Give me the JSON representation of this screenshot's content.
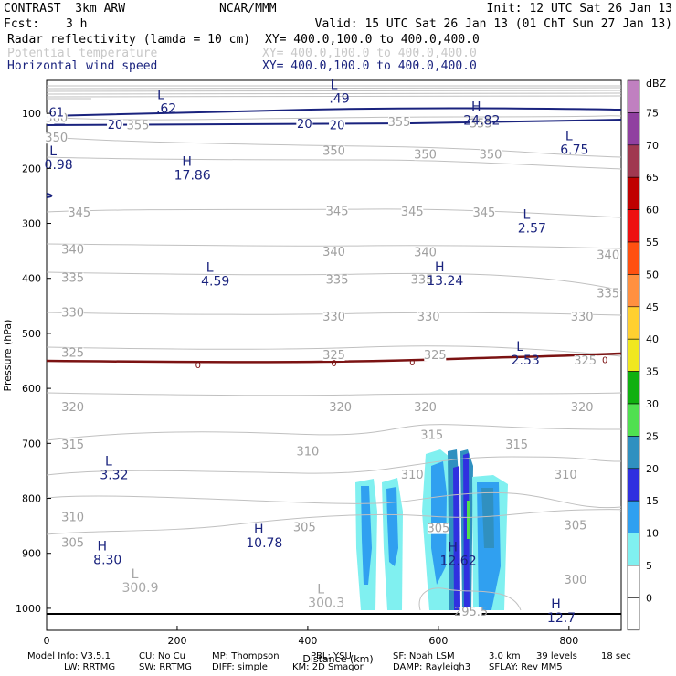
{
  "header": {
    "model": "CONTRAST  3km ARW",
    "center": "NCAR/MMM",
    "init": "Init: 12 UTC Sat 26 Jan 13",
    "fcst_label": "Fcst:",
    "fcst_value": "3 h",
    "valid": "Valid: 15 UTC Sat 26 Jan 13 (01 ChT Sun 27 Jan 13)",
    "fields": [
      {
        "name": "Radar reflectivity (lamda = 10 cm)",
        "xy": "XY= 400.0,100.0 to 400.0,400.0",
        "color": "#000000"
      },
      {
        "name": "Potential temperature",
        "xy": "XY= 400.0,100.0 to 400.0,400.0",
        "color": "#c8c8c8"
      },
      {
        "name": "Horizontal wind speed",
        "xy": "XY= 400.0,100.0 to 400.0,400.0",
        "color": "#1a237e"
      }
    ]
  },
  "footer": {
    "line1": [
      "Model Info: V3.5.1",
      "CU: No Cu",
      "MP: Thompson",
      "PBL: YSU",
      "SF: Noah LSM",
      "3.0 km",
      "39 levels",
      "18 sec"
    ],
    "line2": [
      "LW: RRTMG",
      "SW: RRTMG",
      "DIFF: simple",
      "KM: 2D Smagor",
      "DAMP: Rayleigh3",
      "SFLAY: Rev MM5"
    ]
  },
  "colors": {
    "theta": "#c0c0c0",
    "wind": "#1a237e",
    "freezing": "#7b1212",
    "ground": "#000000"
  },
  "chart_data": {
    "type": "cross-section",
    "xlabel": "Distance (km)",
    "ylabel": "Pressure (hPa)",
    "xlim": [
      0,
      880
    ],
    "ylim": [
      1040,
      40
    ],
    "xticks": [
      0,
      200,
      400,
      600,
      800
    ],
    "yticks": [
      100,
      200,
      300,
      400,
      500,
      600,
      700,
      800,
      900,
      1000
    ],
    "colorbar": {
      "unit": "dBZ",
      "levels": [
        75,
        70,
        65,
        60,
        55,
        50,
        45,
        40,
        35,
        30,
        25,
        20,
        15,
        10,
        5,
        0
      ],
      "colors": [
        "#c080c0",
        "#9040a0",
        "#a03850",
        "#c00000",
        "#ee1010",
        "#ff5010",
        "#ff9040",
        "#ffd030",
        "#f0e820",
        "#10b010",
        "#50e050",
        "#3090c0",
        "#3030e0",
        "#30a0f0",
        "#80f0f0",
        "#ffffff",
        "#ffffff"
      ]
    },
    "theta_labels": [
      {
        "x": 15,
        "p": 114,
        "v": "360"
      },
      {
        "x": 140,
        "p": 127,
        "v": "355"
      },
      {
        "x": 540,
        "p": 121,
        "v": "355"
      },
      {
        "x": 665,
        "p": 124,
        "v": "355"
      },
      {
        "x": 15,
        "p": 150,
        "v": "350"
      },
      {
        "x": 440,
        "p": 174,
        "v": "350"
      },
      {
        "x": 580,
        "p": 180,
        "v": "350"
      },
      {
        "x": 680,
        "p": 180,
        "v": "350"
      },
      {
        "x": 50,
        "p": 286,
        "v": "345"
      },
      {
        "x": 445,
        "p": 283,
        "v": "345"
      },
      {
        "x": 560,
        "p": 284,
        "v": "345"
      },
      {
        "x": 670,
        "p": 286,
        "v": "345"
      },
      {
        "x": 40,
        "p": 353,
        "v": "340"
      },
      {
        "x": 440,
        "p": 357,
        "v": "340"
      },
      {
        "x": 580,
        "p": 358,
        "v": "340"
      },
      {
        "x": 860,
        "p": 363,
        "v": "340"
      },
      {
        "x": 40,
        "p": 405,
        "v": "335"
      },
      {
        "x": 445,
        "p": 408,
        "v": "335"
      },
      {
        "x": 575,
        "p": 408,
        "v": "335"
      },
      {
        "x": 860,
        "p": 433,
        "v": "335"
      },
      {
        "x": 40,
        "p": 468,
        "v": "330"
      },
      {
        "x": 440,
        "p": 475,
        "v": "330"
      },
      {
        "x": 585,
        "p": 475,
        "v": "330"
      },
      {
        "x": 820,
        "p": 475,
        "v": "330"
      },
      {
        "x": 40,
        "p": 541,
        "v": "325"
      },
      {
        "x": 440,
        "p": 545,
        "v": "325"
      },
      {
        "x": 595,
        "p": 545,
        "v": "325"
      },
      {
        "x": 825,
        "p": 555,
        "v": "325"
      },
      {
        "x": 40,
        "p": 640,
        "v": "320"
      },
      {
        "x": 450,
        "p": 640,
        "v": "320"
      },
      {
        "x": 580,
        "p": 640,
        "v": "320"
      },
      {
        "x": 820,
        "p": 640,
        "v": "320"
      },
      {
        "x": 40,
        "p": 708,
        "v": "315"
      },
      {
        "x": 590,
        "p": 690,
        "v": "315"
      },
      {
        "x": 720,
        "p": 708,
        "v": "315"
      },
      {
        "x": 400,
        "p": 720,
        "v": "310"
      },
      {
        "x": 560,
        "p": 763,
        "v": "310"
      },
      {
        "x": 795,
        "p": 763,
        "v": "310"
      },
      {
        "x": 40,
        "p": 840,
        "v": "310"
      },
      {
        "x": 40,
        "p": 886,
        "v": "305"
      },
      {
        "x": 395,
        "p": 858,
        "v": "305"
      },
      {
        "x": 600,
        "p": 860,
        "v": "305"
      },
      {
        "x": 810,
        "p": 855,
        "v": "305"
      },
      {
        "x": 810,
        "p": 954,
        "v": "300"
      },
      {
        "x": 650,
        "p": 1012,
        "v": "295.5"
      }
    ],
    "wind_labels": [
      {
        "x": 15,
        "p": 104,
        "v": "61"
      },
      {
        "x": 105,
        "p": 126,
        "v": "20"
      },
      {
        "x": 395,
        "p": 125,
        "v": "20"
      },
      {
        "x": 445,
        "p": 127,
        "v": "20"
      }
    ],
    "extrema": [
      {
        "x": 175,
        "p": 74,
        "kind": "L",
        "v": ".62",
        "field": "wind"
      },
      {
        "x": 440,
        "p": 56,
        "kind": "L",
        "v": ".49",
        "field": "wind"
      },
      {
        "x": 658,
        "p": 96,
        "kind": "H",
        "v": "24.82",
        "field": "wind"
      },
      {
        "x": 800,
        "p": 149,
        "kind": "L",
        "v": "6.75",
        "field": "wind"
      },
      {
        "x": 10,
        "p": 176,
        "kind": "L",
        "v": "0.98",
        "field": "wind"
      },
      {
        "x": 215,
        "p": 195,
        "kind": "H",
        "v": "17.86",
        "field": "wind"
      },
      {
        "x": 735,
        "p": 292,
        "kind": "L",
        "v": "2.57",
        "field": "wind"
      },
      {
        "x": 250,
        "p": 388,
        "kind": "L",
        "v": "4.59",
        "field": "wind"
      },
      {
        "x": 602,
        "p": 387,
        "kind": "H",
        "v": "13.24",
        "field": "wind"
      },
      {
        "x": 725,
        "p": 532,
        "kind": "L",
        "v": "2.53",
        "field": "wind"
      },
      {
        "x": 95,
        "p": 740,
        "kind": "L",
        "v": "3.32",
        "field": "wind"
      },
      {
        "x": 325,
        "p": 864,
        "kind": "H",
        "v": "10.78",
        "field": "wind"
      },
      {
        "x": 85,
        "p": 895,
        "kind": "H",
        "v": "8.30",
        "field": "wind"
      },
      {
        "x": 622,
        "p": 896,
        "kind": "H",
        "v": "12.62",
        "field": "wind"
      },
      {
        "x": 780,
        "p": 1000,
        "kind": "H",
        "v": "12.7",
        "field": "wind"
      },
      {
        "x": 135,
        "p": 945,
        "kind": "L",
        "v": "300.9",
        "field": "theta"
      },
      {
        "x": 420,
        "p": 973,
        "kind": "L",
        "v": "300.3",
        "field": "theta"
      }
    ],
    "freezing_labels": [
      {
        "x": 232,
        "v": "0"
      },
      {
        "x": 440,
        "v": "0"
      },
      {
        "x": 560,
        "v": "0"
      },
      {
        "x": 855,
        "v": "0"
      }
    ]
  }
}
